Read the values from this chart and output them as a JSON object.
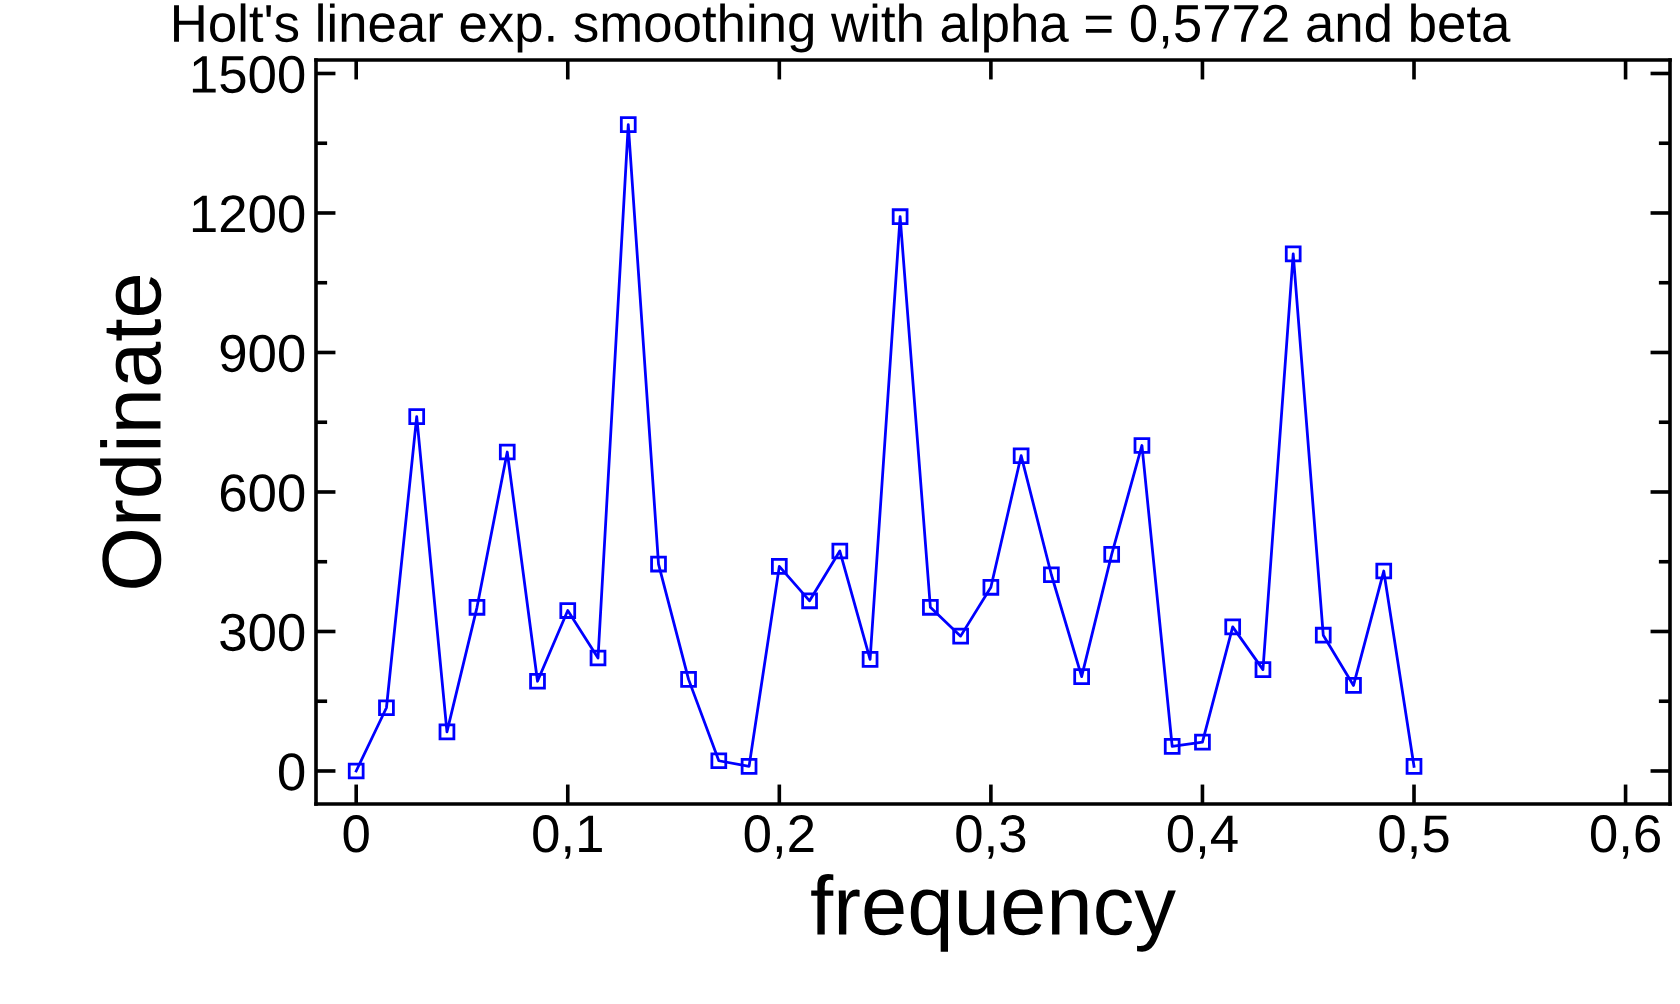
{
  "chart_data": {
    "type": "line",
    "title": "Holt's linear exp. smoothing with alpha = 0,5772 and beta",
    "xlabel": "frequency",
    "ylabel": "Ordinate",
    "x": [
      0,
      0.0143,
      0.0286,
      0.0429,
      0.0571,
      0.0714,
      0.0857,
      0.1,
      0.1143,
      0.1286,
      0.1429,
      0.1571,
      0.1714,
      0.1857,
      0.2,
      0.2143,
      0.2286,
      0.2429,
      0.2571,
      0.2714,
      0.2857,
      0.3,
      0.3143,
      0.3286,
      0.3429,
      0.3571,
      0.3714,
      0.3857,
      0.4,
      0.4143,
      0.4286,
      0.4429,
      0.4571,
      0.4714,
      0.4857,
      0.5
    ],
    "series": [
      {
        "color": "#0000ff",
        "values": [
          0,
          136,
          762,
          84,
          352,
          686,
          193,
          345,
          243,
          1390,
          445,
          197,
          22,
          10,
          440,
          366,
          473,
          240,
          1192,
          352,
          290,
          395,
          678,
          422,
          203,
          466,
          700,
          53,
          62,
          310,
          218,
          1112,
          292,
          184,
          430,
          10
        ]
      }
    ],
    "xlim": [
      -0.019,
      0.621
    ],
    "ylim": [
      -71,
      1529
    ],
    "xticks": [
      {
        "value": 0,
        "label": "0"
      },
      {
        "value": 0.1,
        "label": "0,1"
      },
      {
        "value": 0.2,
        "label": "0,2"
      },
      {
        "value": 0.3,
        "label": "0,3"
      },
      {
        "value": 0.4,
        "label": "0,4"
      },
      {
        "value": 0.5,
        "label": "0,5"
      },
      {
        "value": 0.6,
        "label": "0,6"
      }
    ],
    "yticks": [
      0,
      300,
      600,
      900,
      1200,
      1500
    ],
    "grid": false,
    "marker": "square",
    "line_style": "solid"
  }
}
